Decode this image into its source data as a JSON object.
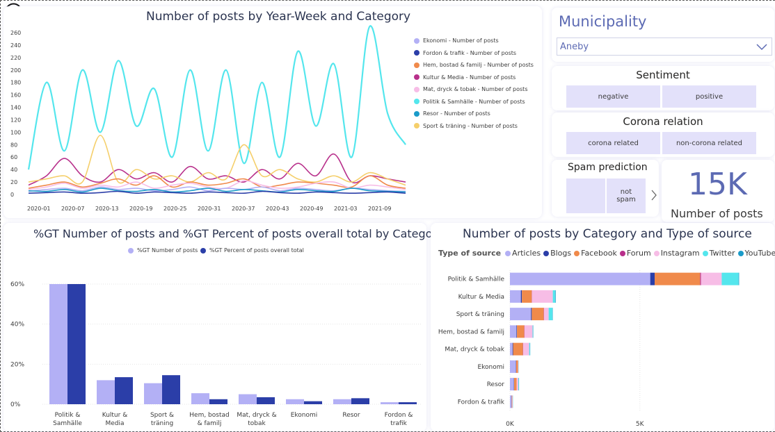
{
  "line_panel": {
    "title": "Number of posts by Year-Week and Category",
    "y_ticks": [
      "260",
      "240",
      "220",
      "200",
      "180",
      "160",
      "140",
      "120",
      "100",
      "80",
      "60",
      "40",
      "20",
      "0"
    ],
    "x_ticks": [
      "2020-01",
      "2020-07",
      "2020-13",
      "2020-19",
      "2020-25",
      "2020-31",
      "2020-37",
      "2020-43",
      "2020-49",
      "2021-03",
      "2021-09"
    ],
    "legend": [
      {
        "label": "Ekonomi - Number of posts",
        "color": "#b3b0f5"
      },
      {
        "label": "Fordon & trafik - Number of posts",
        "color": "#2b3ea8"
      },
      {
        "label": "Hem, bostad & familj - Number of posts",
        "color": "#f08a4b"
      },
      {
        "label": "Kultur & Media - Number of posts",
        "color": "#b8308b"
      },
      {
        "label": "Mat, dryck & tobak - Number of posts",
        "color": "#f7bde6"
      },
      {
        "label": "Politik & Samhälle - Number of posts",
        "color": "#54e6ed"
      },
      {
        "label": "Resor - Number of posts",
        "color": "#1a9bc9"
      },
      {
        "label": "Sport & träning - Number of posts",
        "color": "#f5cf6b"
      }
    ]
  },
  "chart_data": [
    {
      "type": "line",
      "title": "Number of posts by Year-Week and Category",
      "ylim": [
        0,
        260
      ],
      "x": [
        "2020-01",
        "2020-04",
        "2020-07",
        "2020-10",
        "2020-13",
        "2020-16",
        "2020-19",
        "2020-22",
        "2020-25",
        "2020-28",
        "2020-31",
        "2020-34",
        "2020-37",
        "2020-40",
        "2020-43",
        "2020-46",
        "2020-49",
        "2020-52",
        "2021-03",
        "2021-06",
        "2021-09",
        "2021-12"
      ],
      "series": [
        {
          "name": "Politik & Samhälle - Number of posts",
          "color": "#54e6ed",
          "values": [
            40,
            180,
            70,
            200,
            100,
            215,
            110,
            170,
            60,
            200,
            70,
            200,
            50,
            180,
            60,
            230,
            110,
            210,
            60,
            270,
            130,
            80
          ]
        },
        {
          "name": "Kultur & Media - Number of posts",
          "color": "#b8308b",
          "values": [
            15,
            30,
            58,
            30,
            20,
            40,
            25,
            35,
            20,
            45,
            25,
            30,
            20,
            40,
            25,
            50,
            30,
            65,
            20,
            30,
            25,
            20
          ]
        },
        {
          "name": "Sport & träning - Number of posts",
          "color": "#f5cf6b",
          "values": [
            20,
            25,
            30,
            20,
            95,
            20,
            40,
            25,
            30,
            20,
            35,
            25,
            80,
            30,
            40,
            25,
            20,
            30,
            20,
            35,
            25,
            15
          ]
        },
        {
          "name": "Hem, bostad & familj - Number of posts",
          "color": "#f08a4b",
          "values": [
            10,
            15,
            20,
            12,
            18,
            25,
            15,
            30,
            12,
            20,
            15,
            18,
            25,
            12,
            15,
            20,
            18,
            15,
            12,
            30,
            15,
            10
          ]
        },
        {
          "name": "Mat, dryck & tobak - Number of posts",
          "color": "#f7bde6",
          "values": [
            8,
            12,
            18,
            10,
            15,
            12,
            20,
            10,
            15,
            18,
            12,
            10,
            22,
            15,
            10,
            12,
            18,
            20,
            10,
            15,
            12,
            8
          ]
        },
        {
          "name": "Ekonomi - Number of posts",
          "color": "#b3b0f5",
          "values": [
            5,
            8,
            10,
            6,
            12,
            8,
            10,
            6,
            8,
            12,
            6,
            10,
            8,
            12,
            6,
            10,
            8,
            6,
            10,
            8,
            6,
            5
          ]
        },
        {
          "name": "Resor - Number of posts",
          "color": "#1a9bc9",
          "values": [
            6,
            5,
            8,
            4,
            10,
            6,
            5,
            8,
            4,
            6,
            10,
            5,
            8,
            6,
            4,
            8,
            6,
            5,
            10,
            6,
            5,
            4
          ]
        },
        {
          "name": "Fordon & trafik - Number of posts",
          "color": "#2b3ea8",
          "values": [
            2,
            3,
            4,
            2,
            3,
            5,
            2,
            4,
            3,
            2,
            4,
            3,
            2,
            5,
            3,
            2,
            4,
            3,
            2,
            3,
            4,
            2
          ]
        }
      ]
    },
    {
      "type": "bar",
      "title": "%GT Number of posts and %GT Percent of posts overall total by Category",
      "categories": [
        "Politik & Samhälle",
        "Kultur & Media",
        "Sport & träning",
        "Hem, bostad & familj",
        "Mat, dryck & tobak",
        "Ekonomi",
        "Resor",
        "Fordon & trafik"
      ],
      "ylim": [
        0,
        0.7
      ],
      "series": [
        {
          "name": "%GT Number of posts",
          "color": "#b3b0f5",
          "values": [
            0.6,
            0.12,
            0.105,
            0.055,
            0.05,
            0.025,
            0.025,
            0.01
          ]
        },
        {
          "name": "%GT Percent of posts overall total",
          "color": "#2b3ea8",
          "values": [
            0.6,
            0.135,
            0.145,
            0.025,
            0.035,
            0.015,
            0.03,
            0.01
          ]
        }
      ]
    },
    {
      "type": "bar",
      "orientation": "horizontal",
      "stacked": true,
      "title": "Number of posts by Category and Type of source",
      "categories": [
        "Politik & Samhälle",
        "Kultur & Media",
        "Sport & träning",
        "Hem, bostad & familj",
        "Mat, dryck & tobak",
        "Ekonomi",
        "Resor",
        "Fordon & trafik"
      ],
      "xlim": [
        0,
        9800
      ],
      "series": [
        {
          "name": "Articles",
          "color": "#b3b0f5",
          "values": [
            5400,
            420,
            810,
            250,
            100,
            230,
            150,
            60
          ]
        },
        {
          "name": "Blogs",
          "color": "#2b3ea8",
          "values": [
            170,
            40,
            30,
            20,
            20,
            10,
            10,
            10
          ]
        },
        {
          "name": "Facebook",
          "color": "#f08a4b",
          "values": [
            1750,
            380,
            460,
            280,
            380,
            70,
            100,
            20
          ]
        },
        {
          "name": "Forum",
          "color": "#b8308b",
          "values": [
            30,
            10,
            10,
            10,
            10,
            0,
            0,
            0
          ]
        },
        {
          "name": "Instagram",
          "color": "#f7bde6",
          "values": [
            800,
            800,
            180,
            310,
            230,
            20,
            60,
            20
          ]
        },
        {
          "name": "Twitter",
          "color": "#54e6ed",
          "values": [
            650,
            90,
            150,
            20,
            30,
            10,
            20,
            10
          ]
        },
        {
          "name": "YouTube",
          "color": "#1a9bc9",
          "values": [
            20,
            20,
            10,
            10,
            10,
            0,
            10,
            0
          ]
        }
      ]
    }
  ],
  "bar_panel": {
    "title": "%GT Number of posts and %GT Percent of posts overall total by Category",
    "legend": [
      {
        "label": "%GT Number of posts",
        "color": "#b3b0f5"
      },
      {
        "label": "%GT Percent of posts overall total",
        "color": "#2b3ea8"
      }
    ],
    "y_ticks": [
      "60%",
      "40%",
      "20%",
      "0%"
    ],
    "x_labels": [
      [
        "Politik &",
        "Samhälle"
      ],
      [
        "Kultur &",
        "Media"
      ],
      [
        "Sport &",
        "träning"
      ],
      [
        "Hem, bostad",
        "& familj"
      ],
      [
        "Mat, dryck &",
        "tobak"
      ],
      [
        "Ekonomi"
      ],
      [
        "Resor"
      ],
      [
        "Fordon &",
        "trafik"
      ]
    ]
  },
  "stack_panel": {
    "title": "Number of posts by Category and Type of source",
    "legend_title": "Type of source",
    "legend": [
      {
        "label": "Articles",
        "color": "#b3b0f5"
      },
      {
        "label": "Blogs",
        "color": "#2b3ea8"
      },
      {
        "label": "Facebook",
        "color": "#f08a4b"
      },
      {
        "label": "Forum",
        "color": "#b8308b"
      },
      {
        "label": "Instagram",
        "color": "#f7bde6"
      },
      {
        "label": "Twitter",
        "color": "#54e6ed"
      },
      {
        "label": "YouTube",
        "color": "#1a9bc9"
      }
    ],
    "x_ticks": [
      "0K",
      "5K"
    ]
  },
  "municipality": {
    "title": "Municipality",
    "selected": "Aneby"
  },
  "sentiment": {
    "title": "Sentiment",
    "options": [
      "negative",
      "positive"
    ]
  },
  "corona": {
    "title": "Corona relation",
    "options": [
      "corona related",
      "non-corona related"
    ]
  },
  "spam": {
    "title": "Spam prediction",
    "options": [
      "",
      "not spam"
    ]
  },
  "card": {
    "value": "15K",
    "label": "Number of posts"
  }
}
